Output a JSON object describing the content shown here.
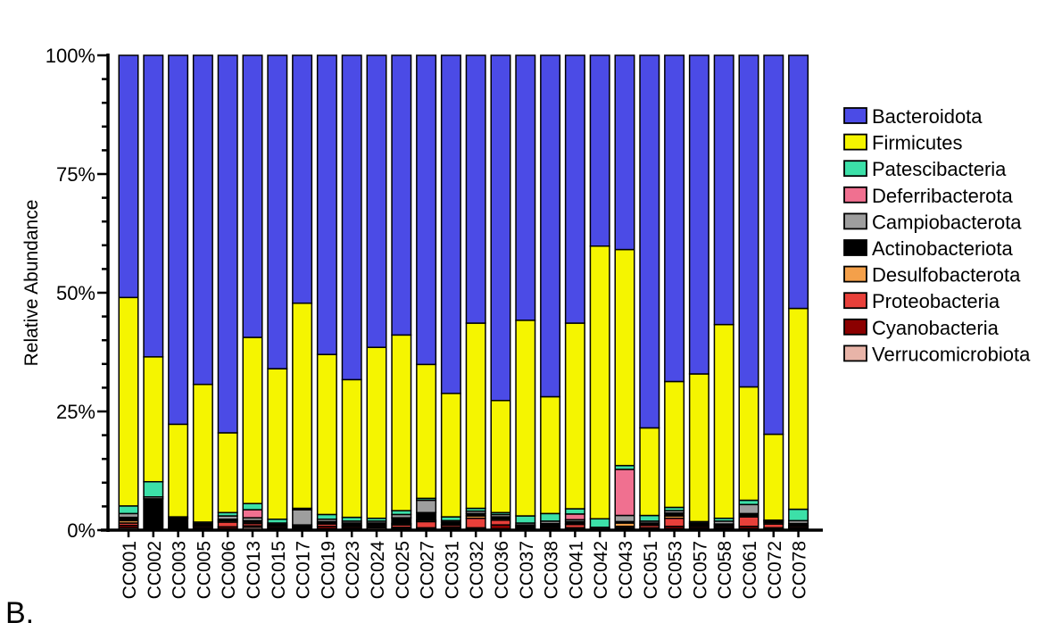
{
  "panel_label": "B.",
  "chart_data": {
    "type": "bar",
    "stacked": true,
    "ylabel": "Relative Abundance",
    "ylim": [
      0,
      100
    ],
    "yticks": [
      0,
      25,
      50,
      75,
      100
    ],
    "ytick_labels": [
      "0%",
      "25%",
      "50%",
      "75%",
      "100%"
    ],
    "legend_position": "right",
    "categories": [
      "CC001",
      "CC002",
      "CC003",
      "CC005",
      "CC006",
      "CC013",
      "CC015",
      "CC017",
      "CC019",
      "CC023",
      "CC024",
      "CC025",
      "CC027",
      "CC031",
      "CC032",
      "CC036",
      "CC037",
      "CC038",
      "CC041",
      "CC042",
      "CC043",
      "CC051",
      "CC053",
      "CC057",
      "CC058",
      "CC061",
      "CC072",
      "CC078"
    ],
    "series": [
      {
        "name": "Verrucomicrobiota",
        "color": "#e8b4a8",
        "values": [
          0.5,
          0,
          0,
          0.3,
          0.3,
          0.6,
          0.3,
          0.3,
          0.3,
          0.3,
          0.5,
          0.3,
          0.3,
          0.3,
          0.3,
          0.3,
          0.3,
          0.3,
          0.3,
          0.3,
          0.3,
          0.3,
          0.3,
          0.3,
          0.3,
          0.3,
          0.3,
          0.3
        ]
      },
      {
        "name": "Cyanobacteria",
        "color": "#8b0000",
        "values": [
          0.5,
          0,
          0,
          0.2,
          0.4,
          0.3,
          0.2,
          0.2,
          0.5,
          0.3,
          0.2,
          0.3,
          0.2,
          0.3,
          0.2,
          0.8,
          0.2,
          0.3,
          0.2,
          0,
          0.2,
          0.2,
          0.5,
          0.3,
          0.2,
          0.5,
          0.2,
          0.2
        ]
      },
      {
        "name": "Proteobacteria",
        "color": "#e8403a",
        "values": [
          0.5,
          0,
          0.3,
          0.3,
          1.0,
          0.5,
          0.3,
          0.2,
          0.5,
          0.3,
          0.3,
          0.5,
          1.3,
          0.4,
          2.0,
          1.0,
          0.2,
          0.2,
          0.7,
          0,
          0.3,
          0.5,
          1.7,
          0.3,
          0.3,
          2.0,
          0.8,
          0.3
        ]
      },
      {
        "name": "Desulfobacterota",
        "color": "#f4a04a",
        "values": [
          0.5,
          0,
          0.2,
          0.2,
          0.3,
          0.3,
          0.2,
          0.2,
          0.2,
          0.2,
          0.2,
          0.3,
          0.3,
          0.2,
          0.5,
          0.3,
          0.2,
          0.2,
          0.2,
          0,
          0.7,
          0.2,
          0.5,
          0.2,
          0.3,
          0.3,
          0.3,
          0.2
        ]
      },
      {
        "name": "Actinobacteriota",
        "color": "#000000",
        "values": [
          0.7,
          6.6,
          1.9,
          0.2,
          0.3,
          0.3,
          0.2,
          0.2,
          0.3,
          0.4,
          0.3,
          1.2,
          1.6,
          0.5,
          0.5,
          0.4,
          0.2,
          0.4,
          0.4,
          0,
          0.3,
          0.3,
          0.6,
          0.3,
          0.2,
          0.4,
          0.2,
          0.4
        ]
      },
      {
        "name": "Campiobacterota",
        "color": "#9e9e9e",
        "values": [
          0.8,
          0.4,
          0.2,
          0.2,
          0.7,
          0.6,
          0.3,
          3.2,
          0.5,
          0.4,
          0.4,
          0.7,
          2.6,
          0.3,
          0.5,
          0.5,
          0.4,
          0.5,
          0.4,
          0.3,
          1.3,
          0.4,
          0.5,
          0.1,
          0.6,
          1.9,
          0.2,
          0.6
        ]
      },
      {
        "name": "Deferribacterota",
        "color": "#f07090",
        "values": [
          0,
          0,
          0,
          0,
          0,
          1.7,
          0,
          0,
          0,
          0,
          0,
          0,
          0,
          0,
          0,
          0,
          0,
          0,
          1.2,
          0,
          9.7,
          0,
          0,
          0,
          0,
          0,
          0,
          0
        ]
      },
      {
        "name": "Patescibacteria",
        "color": "#3ce0a8",
        "values": [
          1.6,
          3.2,
          0.2,
          0.3,
          0.7,
          1.3,
          0.8,
          0.3,
          1.0,
          0.8,
          0.6,
          0.8,
          0.4,
          0.8,
          0.6,
          0.4,
          1.5,
          1.6,
          1.1,
          1.8,
          0.8,
          1.2,
          0.7,
          0.3,
          0.6,
          0.9,
          0.1,
          2.4
        ]
      },
      {
        "name": "Firmicutes",
        "color": "#f5f500",
        "values": [
          43.9,
          26.3,
          19.5,
          29.0,
          16.8,
          35.0,
          31.7,
          43.2,
          33.7,
          29.0,
          36.0,
          37.0,
          28.2,
          26.0,
          39.0,
          23.6,
          41.2,
          24.6,
          39.1,
          57.6,
          45.5,
          18.5,
          26.5,
          31.1,
          40.8,
          23.9,
          18.1,
          42.3
        ]
      },
      {
        "name": "Bacteroidota",
        "color": "#4b4be6",
        "values": [
          51.0,
          63.5,
          77.7,
          69.3,
          79.5,
          59.4,
          66.0,
          52.2,
          63.0,
          68.3,
          61.5,
          58.9,
          65.1,
          71.2,
          56.4,
          72.7,
          55.8,
          71.9,
          56.4,
          40.3,
          40.9,
          78.7,
          68.7,
          67.1,
          56.7,
          69.9,
          79.8,
          53.3
        ]
      }
    ],
    "legend_order": [
      "Bacteroidota",
      "Firmicutes",
      "Patescibacteria",
      "Deferribacterota",
      "Campiobacterota",
      "Actinobacteriota",
      "Desulfobacterota",
      "Proteobacteria",
      "Cyanobacteria",
      "Verrucomicrobiota"
    ],
    "legend_labels": [
      "Bacteroidota",
      "Firmicutes",
      "Patescibacteria",
      "Deferribacterota",
      "Campiobacterota",
      "Actinobacteriota",
      "Desulfobacterota",
      "Proteobacteria",
      "Cyanobacteria",
      "Verrucomicrobiota"
    ]
  }
}
